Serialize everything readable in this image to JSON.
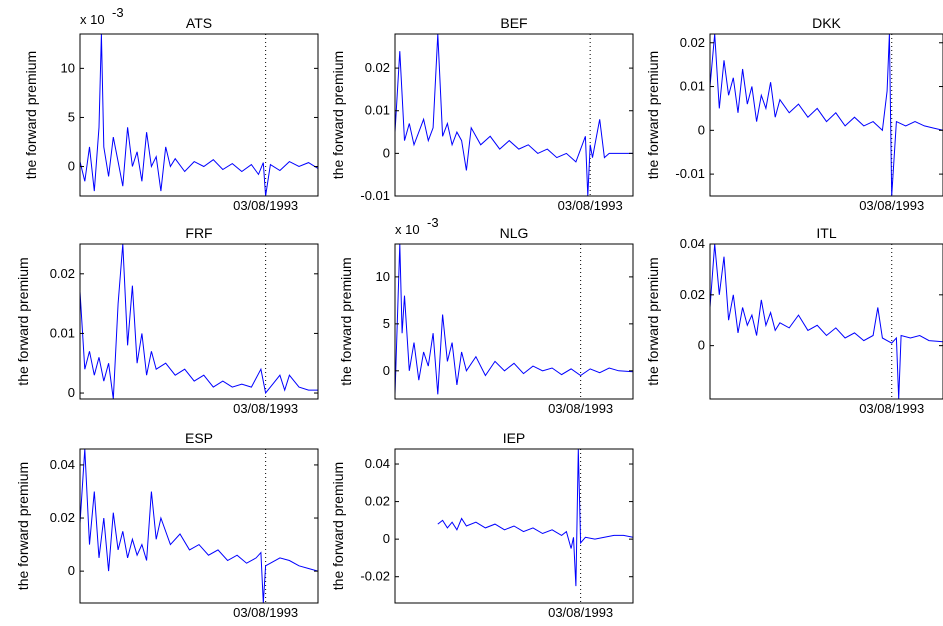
{
  "chart_data": [
    {
      "type": "line",
      "title": "ATS",
      "ylabel": "the forward premium",
      "xlabel": "03/08/1993",
      "y_multiplier": "x 10",
      "y_exponent": "-3",
      "ylim": [
        -3,
        13.5
      ],
      "yticks": [
        0,
        5,
        10
      ],
      "ytick_labels": [
        "0",
        "5",
        "10"
      ],
      "event_date": "03/08/1993",
      "event_x": 0.78,
      "series": [
        {
          "color": "#0000ff",
          "x": [
            0,
            0.02,
            0.04,
            0.06,
            0.08,
            0.09,
            0.1,
            0.12,
            0.14,
            0.16,
            0.18,
            0.2,
            0.22,
            0.24,
            0.26,
            0.28,
            0.3,
            0.32,
            0.34,
            0.36,
            0.38,
            0.4,
            0.44,
            0.48,
            0.52,
            0.56,
            0.6,
            0.64,
            0.68,
            0.72,
            0.75,
            0.77,
            0.78,
            0.8,
            0.84,
            0.88,
            0.92,
            0.96,
            1.0
          ],
          "y": [
            0.5,
            -1.5,
            2,
            -2.5,
            4,
            13.5,
            2,
            -1,
            3,
            0.5,
            -2,
            4,
            0,
            1.5,
            -1.5,
            3.5,
            0,
            1,
            -2.5,
            2,
            0,
            0.8,
            -0.5,
            0.5,
            0,
            0.7,
            -0.3,
            0.3,
            -0.5,
            0.2,
            -0.8,
            0.4,
            -3,
            0.2,
            -0.4,
            0.5,
            0,
            0.4,
            -0.2
          ]
        }
      ]
    },
    {
      "type": "line",
      "title": "BEF",
      "ylabel": "the forward premium",
      "xlabel": "03/08/1993",
      "ylim": [
        -0.01,
        0.028
      ],
      "yticks": [
        -0.01,
        0,
        0.01,
        0.02
      ],
      "ytick_labels": [
        "-0.01",
        "0",
        "0.01",
        "0.02"
      ],
      "event_date": "03/08/1993",
      "event_x": 0.82,
      "series": [
        {
          "color": "#0000ff",
          "x": [
            0,
            0.02,
            0.04,
            0.06,
            0.08,
            0.1,
            0.12,
            0.14,
            0.16,
            0.18,
            0.2,
            0.22,
            0.24,
            0.26,
            0.28,
            0.3,
            0.32,
            0.36,
            0.4,
            0.44,
            0.48,
            0.52,
            0.56,
            0.6,
            0.64,
            0.68,
            0.72,
            0.76,
            0.8,
            0.81,
            0.82,
            0.83,
            0.86,
            0.88,
            0.9,
            0.94,
            1.0
          ],
          "y": [
            0.005,
            0.024,
            0.003,
            0.007,
            0.002,
            0.005,
            0.008,
            0.003,
            0.006,
            0.028,
            0.004,
            0.007,
            0.002,
            0.005,
            0.003,
            -0.004,
            0.006,
            0.002,
            0.004,
            0.001,
            0.003,
            0.001,
            0.002,
            0,
            0.001,
            -0.001,
            0,
            -0.002,
            0.004,
            -0.01,
            0.002,
            -0.001,
            0.008,
            -0.001,
            0,
            0,
            0
          ]
        }
      ]
    },
    {
      "type": "line",
      "title": "DKK",
      "ylabel": "the forward premium",
      "xlabel": "03/08/1993",
      "ylim": [
        -0.015,
        0.022
      ],
      "yticks": [
        -0.01,
        0,
        0.01,
        0.02
      ],
      "ytick_labels": [
        "-0.01",
        "0",
        "0.01",
        "0.02"
      ],
      "event_date": "03/08/1993",
      "event_x": 0.78,
      "series": [
        {
          "color": "#0000ff",
          "x": [
            0,
            0.02,
            0.04,
            0.06,
            0.08,
            0.1,
            0.12,
            0.14,
            0.16,
            0.18,
            0.2,
            0.22,
            0.24,
            0.26,
            0.28,
            0.3,
            0.34,
            0.38,
            0.42,
            0.46,
            0.5,
            0.54,
            0.58,
            0.62,
            0.66,
            0.7,
            0.74,
            0.76,
            0.77,
            0.78,
            0.8,
            0.84,
            0.88,
            0.92,
            0.96,
            1.0
          ],
          "y": [
            0.01,
            0.022,
            0.005,
            0.016,
            0.008,
            0.012,
            0.004,
            0.014,
            0.006,
            0.01,
            0.002,
            0.008,
            0.005,
            0.011,
            0.003,
            0.007,
            0.004,
            0.006,
            0.003,
            0.005,
            0.002,
            0.004,
            0.001,
            0.003,
            0.001,
            0.002,
            0,
            0.009,
            0.022,
            -0.015,
            0.002,
            0.001,
            0.002,
            0.001,
            0.0005,
            0
          ]
        }
      ]
    },
    {
      "type": "line",
      "title": "FRF",
      "ylabel": "the forward premium",
      "xlabel": "03/08/1993",
      "ylim": [
        -0.001,
        0.025
      ],
      "yticks": [
        0,
        0.01,
        0.02
      ],
      "ytick_labels": [
        "0",
        "0.01",
        "0.02"
      ],
      "event_date": "03/08/1993",
      "event_x": 0.78,
      "series": [
        {
          "color": "#0000ff",
          "x": [
            0,
            0.02,
            0.04,
            0.06,
            0.08,
            0.1,
            0.12,
            0.14,
            0.16,
            0.18,
            0.2,
            0.22,
            0.24,
            0.26,
            0.28,
            0.3,
            0.32,
            0.36,
            0.4,
            0.44,
            0.48,
            0.52,
            0.56,
            0.6,
            0.64,
            0.68,
            0.72,
            0.76,
            0.78,
            0.8,
            0.84,
            0.86,
            0.88,
            0.92,
            0.96,
            1.0
          ],
          "y": [
            0.017,
            0.004,
            0.007,
            0.003,
            0.006,
            0.002,
            0.005,
            -0.001,
            0.015,
            0.025,
            0.008,
            0.018,
            0.005,
            0.01,
            0.003,
            0.007,
            0.004,
            0.005,
            0.003,
            0.004,
            0.002,
            0.003,
            0.001,
            0.002,
            0.001,
            0.0015,
            0.001,
            0.004,
            0,
            0.001,
            0.003,
            0.0005,
            0.003,
            0.001,
            0.0005,
            0.0005
          ]
        }
      ]
    },
    {
      "type": "line",
      "title": "NLG",
      "ylabel": "the forward premium",
      "xlabel": "03/08/1993",
      "y_multiplier": "x 10",
      "y_exponent": "-3",
      "ylim": [
        -3,
        13.5
      ],
      "yticks": [
        0,
        5,
        10
      ],
      "ytick_labels": [
        "0",
        "5",
        "10"
      ],
      "event_date": "03/08/1993",
      "event_x": 0.78,
      "series": [
        {
          "color": "#0000ff",
          "x": [
            0,
            0.02,
            0.03,
            0.04,
            0.06,
            0.08,
            0.1,
            0.12,
            0.14,
            0.16,
            0.18,
            0.2,
            0.22,
            0.24,
            0.26,
            0.28,
            0.3,
            0.34,
            0.38,
            0.42,
            0.46,
            0.5,
            0.54,
            0.58,
            0.62,
            0.66,
            0.7,
            0.74,
            0.78,
            0.82,
            0.86,
            0.9,
            0.94,
            1.0
          ],
          "y": [
            -2.5,
            13.5,
            4,
            8,
            0,
            3,
            -1,
            2,
            0.5,
            4,
            -2.5,
            6,
            1,
            3,
            -1.5,
            2,
            0,
            1.5,
            -0.5,
            1,
            0,
            0.8,
            -0.3,
            0.5,
            0,
            0.3,
            -0.4,
            0.2,
            -0.5,
            0.2,
            -0.2,
            0.3,
            0,
            -0.1
          ]
        }
      ]
    },
    {
      "type": "line",
      "title": "ITL",
      "ylabel": "the forward premium",
      "xlabel": "03/08/1993",
      "ylim": [
        -0.021,
        0.04
      ],
      "yticks": [
        0,
        0.02,
        0.04
      ],
      "ytick_labels": [
        "0",
        "0.02",
        "0.04"
      ],
      "event_date": "03/08/1993",
      "event_x": 0.78,
      "series": [
        {
          "color": "#0000ff",
          "x": [
            0,
            0.02,
            0.04,
            0.06,
            0.08,
            0.1,
            0.12,
            0.14,
            0.16,
            0.18,
            0.2,
            0.22,
            0.24,
            0.26,
            0.28,
            0.3,
            0.34,
            0.38,
            0.42,
            0.46,
            0.5,
            0.54,
            0.58,
            0.62,
            0.66,
            0.7,
            0.72,
            0.74,
            0.78,
            0.8,
            0.81,
            0.82,
            0.86,
            0.9,
            0.94,
            1.0
          ],
          "y": [
            0.015,
            0.04,
            0.02,
            0.035,
            0.01,
            0.02,
            0.005,
            0.015,
            0.008,
            0.012,
            0.004,
            0.018,
            0.008,
            0.013,
            0.006,
            0.009,
            0.007,
            0.012,
            0.006,
            0.008,
            0.004,
            0.007,
            0.003,
            0.005,
            0.002,
            0.004,
            0.015,
            0.003,
            0.001,
            0.003,
            -0.021,
            0.004,
            0.003,
            0.004,
            0.002,
            0.0015
          ]
        }
      ]
    },
    {
      "type": "line",
      "title": "ESP",
      "ylabel": "the forward premium",
      "xlabel": "03/08/1993",
      "ylim": [
        -0.012,
        0.046
      ],
      "yticks": [
        0,
        0.02,
        0.04
      ],
      "ytick_labels": [
        "0",
        "0.02",
        "0.04"
      ],
      "event_date": "03/08/1993",
      "event_x": 0.78,
      "series": [
        {
          "color": "#0000ff",
          "x": [
            0,
            0.02,
            0.04,
            0.06,
            0.08,
            0.1,
            0.12,
            0.14,
            0.16,
            0.18,
            0.2,
            0.22,
            0.24,
            0.26,
            0.28,
            0.3,
            0.32,
            0.34,
            0.38,
            0.42,
            0.46,
            0.5,
            0.54,
            0.58,
            0.62,
            0.66,
            0.7,
            0.74,
            0.76,
            0.77,
            0.78,
            0.8,
            0.84,
            0.88,
            0.92,
            0.96,
            1.0
          ],
          "y": [
            0.018,
            0.046,
            0.01,
            0.03,
            0.005,
            0.02,
            0,
            0.022,
            0.008,
            0.015,
            0.005,
            0.012,
            0.006,
            0.01,
            0.004,
            0.03,
            0.012,
            0.02,
            0.01,
            0.014,
            0.008,
            0.01,
            0.006,
            0.008,
            0.004,
            0.006,
            0.003,
            0.005,
            0.007,
            -0.012,
            0.002,
            0.003,
            0.005,
            0.004,
            0.002,
            0.001,
            0
          ]
        }
      ]
    },
    {
      "type": "line",
      "title": "IEP",
      "ylabel": "the forward premium",
      "xlabel": "03/08/1993",
      "ylim": [
        -0.034,
        0.048
      ],
      "yticks": [
        -0.02,
        0,
        0.02,
        0.04
      ],
      "ytick_labels": [
        "-0.02",
        "0",
        "0.02",
        "0.04"
      ],
      "event_date": "03/08/1993",
      "event_x": 0.78,
      "series": [
        {
          "color": "#0000ff",
          "x": [
            0.18,
            0.2,
            0.22,
            0.24,
            0.26,
            0.28,
            0.3,
            0.34,
            0.38,
            0.42,
            0.46,
            0.5,
            0.54,
            0.58,
            0.62,
            0.66,
            0.7,
            0.72,
            0.74,
            0.75,
            0.76,
            0.77,
            0.78,
            0.8,
            0.84,
            0.88,
            0.92,
            0.96,
            1.0
          ],
          "y": [
            0.008,
            0.01,
            0.006,
            0.009,
            0.005,
            0.011,
            0.007,
            0.009,
            0.006,
            0.008,
            0.005,
            0.007,
            0.004,
            0.006,
            0.003,
            0.005,
            0.002,
            0.004,
            -0.005,
            0.001,
            -0.025,
            0.048,
            -0.002,
            0.001,
            0,
            0.001,
            0.002,
            0.002,
            0.001
          ]
        }
      ]
    }
  ]
}
